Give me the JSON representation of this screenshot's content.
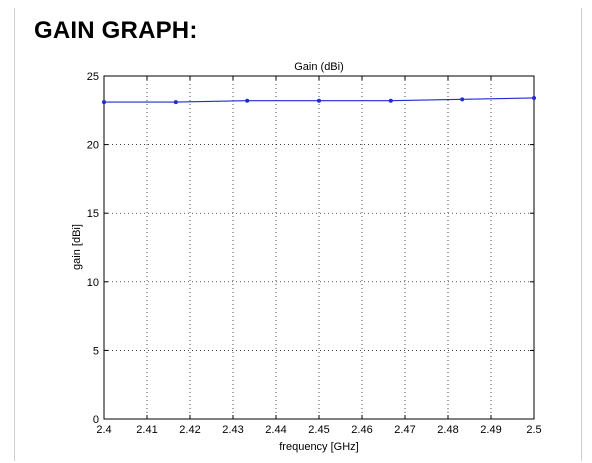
{
  "page": {
    "heading": "GAIN GRAPH:"
  },
  "colors": {
    "series": "#1f2bd6",
    "grid": "#000000",
    "axis": "#000000"
  },
  "chart_data": {
    "type": "line",
    "title": "Gain (dBi)",
    "xlabel": "frequency [GHz]",
    "ylabel": "gain [dBi]",
    "xlim": [
      2.4,
      2.5
    ],
    "ylim": [
      0,
      25
    ],
    "xticks": [
      "2.4",
      "2.41",
      "2.42",
      "2.43",
      "2.44",
      "2.45",
      "2.46",
      "2.47",
      "2.48",
      "2.49",
      "2.5"
    ],
    "yticks": [
      "0",
      "5",
      "10",
      "15",
      "20",
      "25"
    ],
    "grid": true,
    "series": [
      {
        "x": [
          2.4,
          2.4167,
          2.4333,
          2.45,
          2.4667,
          2.4833,
          2.5
        ],
        "y": [
          23.1,
          23.1,
          23.2,
          23.2,
          23.2,
          23.3,
          23.4
        ]
      }
    ]
  }
}
